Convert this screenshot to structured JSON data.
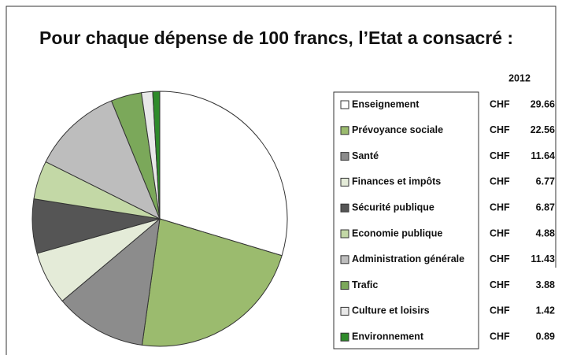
{
  "chart_data": {
    "type": "pie",
    "title": "Pour chaque dépense de 100 francs, l’Etat a consacré :",
    "series_name": "2012",
    "currency": "CHF",
    "categories": [
      "Enseignement",
      "Prévoyance sociale",
      "Santé",
      "Finances et impôts",
      "Sécurité publique",
      "Economie publique",
      "Administration générale",
      "Trafic",
      "Culture et loisirs",
      "Environnement"
    ],
    "values": [
      29.66,
      22.56,
      11.64,
      6.77,
      6.87,
      4.88,
      11.43,
      3.88,
      1.42,
      0.89
    ],
    "colors": [
      "#ffffff",
      "#9bbb6e",
      "#8c8c8c",
      "#e4ebd8",
      "#555555",
      "#c3d8a6",
      "#bdbdbd",
      "#7ba85a",
      "#e8e8e8",
      "#2e8b2a"
    ]
  }
}
